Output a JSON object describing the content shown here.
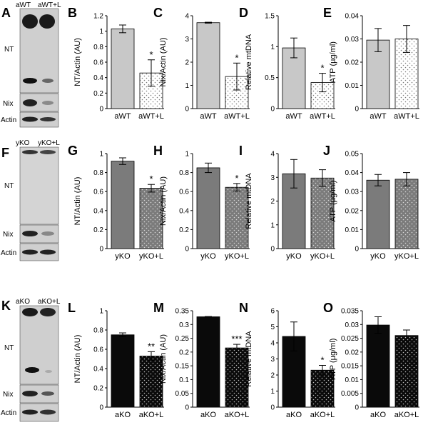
{
  "colors": {
    "aWT_bar": "#c8c8c8",
    "yKO_bar": "#7b7b7b",
    "aKO_bar": "#0a0a0a",
    "dot_light": "#ffffff",
    "axis": "#000000"
  },
  "blots": [
    {
      "letter": "A",
      "lanes": [
        "aWT",
        "aWT+L"
      ],
      "bands": [
        "NT",
        "Nix",
        "Actin"
      ]
    },
    {
      "letter": "F",
      "lanes": [
        "yKO",
        "yKO+L"
      ],
      "bands": [
        "NT",
        "Nix",
        "Actin"
      ]
    },
    {
      "letter": "K",
      "lanes": [
        "aKO",
        "aKO+L"
      ],
      "bands": [
        "NT",
        "Nix",
        "Actin"
      ]
    }
  ],
  "chart_data": [
    {
      "letter": "B",
      "type": "bar",
      "ylabel": "NT/Actin (AU)",
      "ylim": [
        0,
        1.2
      ],
      "ticks": [
        "0",
        "0.2",
        "0.4",
        "0.6",
        "0.8",
        "1",
        "1.2"
      ],
      "categories": [
        "aWT",
        "aWT+L"
      ],
      "values": [
        1.03,
        0.46
      ],
      "errors": [
        0.05,
        0.17
      ],
      "sig": [
        "",
        "*"
      ]
    },
    {
      "letter": "C",
      "type": "bar",
      "ylabel": "Nix/Actin (AU)",
      "ylim": [
        0,
        4
      ],
      "ticks": [
        "0",
        "1",
        "2",
        "3",
        "4"
      ],
      "categories": [
        "aWT",
        "aWT+L"
      ],
      "values": [
        3.7,
        1.38
      ],
      "errors": [
        0.02,
        0.58
      ],
      "sig": [
        "",
        "*"
      ]
    },
    {
      "letter": "D",
      "type": "bar",
      "ylabel": "Relative mtDNA",
      "ylim": [
        0,
        1.5
      ],
      "ticks": [
        "0",
        "0.5",
        "1",
        "1.5"
      ],
      "categories": [
        "aWT",
        "aWT+L"
      ],
      "values": [
        0.98,
        0.42
      ],
      "errors": [
        0.16,
        0.15
      ],
      "sig": [
        "",
        "*"
      ]
    },
    {
      "letter": "E",
      "type": "bar",
      "ylabel": "ATP (µg/ml)",
      "ylim": [
        0,
        0.04
      ],
      "ticks": [
        "0",
        "0.01",
        "0.02",
        "0.03",
        "0.04"
      ],
      "categories": [
        "aWT",
        "aWT+L"
      ],
      "values": [
        0.0295,
        0.03
      ],
      "errors": [
        0.005,
        0.0058
      ],
      "sig": [
        "",
        ""
      ]
    },
    {
      "letter": "G",
      "type": "bar",
      "ylabel": "NT/Actin (AU)",
      "ylim": [
        0,
        1
      ],
      "ticks": [
        "0",
        "0.2",
        "0.4",
        "0.6",
        "0.8",
        "1"
      ],
      "categories": [
        "yKO",
        "yKO+L"
      ],
      "values": [
        0.92,
        0.635
      ],
      "errors": [
        0.035,
        0.04
      ],
      "sig": [
        "",
        "*"
      ]
    },
    {
      "letter": "H",
      "type": "bar",
      "ylabel": "Nix/Actin (AU)",
      "ylim": [
        0,
        1
      ],
      "ticks": [
        "0",
        "0.2",
        "0.4",
        "0.6",
        "0.8",
        "1"
      ],
      "categories": [
        "yKO",
        "yKO+L"
      ],
      "values": [
        0.85,
        0.645
      ],
      "errors": [
        0.05,
        0.04
      ],
      "sig": [
        "",
        "*"
      ]
    },
    {
      "letter": "I",
      "type": "bar",
      "ylabel": "Relative mtDNA",
      "ylim": [
        0,
        4
      ],
      "ticks": [
        "0",
        "1",
        "2",
        "3",
        "4"
      ],
      "categories": [
        "yKO",
        "yKO+L"
      ],
      "values": [
        3.15,
        2.97
      ],
      "errors": [
        0.6,
        0.35
      ],
      "sig": [
        "",
        ""
      ]
    },
    {
      "letter": "J",
      "type": "bar",
      "ylabel": "ATP (µg/ml)",
      "ylim": [
        0,
        0.05
      ],
      "ticks": [
        "0",
        "0.01",
        "0.02",
        "0.03",
        "0.04",
        "0.05"
      ],
      "categories": [
        "yKO",
        "yKO+L"
      ],
      "values": [
        0.036,
        0.0365
      ],
      "errors": [
        0.003,
        0.0035
      ],
      "sig": [
        "",
        ""
      ]
    },
    {
      "letter": "L",
      "type": "bar",
      "ylabel": "NT/Actin (AU)",
      "ylim": [
        0,
        1
      ],
      "ticks": [
        "0",
        "0.2",
        "0.4",
        "0.6",
        "0.8",
        "1"
      ],
      "categories": [
        "aKO",
        "aKO+L"
      ],
      "values": [
        0.75,
        0.53
      ],
      "errors": [
        0.02,
        0.045
      ],
      "sig": [
        "",
        "**"
      ]
    },
    {
      "letter": "M",
      "type": "bar",
      "ylabel": "Nix/Actin (AU)",
      "ylim": [
        0,
        0.35
      ],
      "ticks": [
        "0",
        "0.05",
        "0.1",
        "0.15",
        "0.2",
        "0.25",
        "0.3",
        "0.35"
      ],
      "categories": [
        "aKO",
        "aKO+L"
      ],
      "values": [
        0.328,
        0.215
      ],
      "errors": [
        0.001,
        0.013
      ],
      "sig": [
        "",
        "***"
      ]
    },
    {
      "letter": "N",
      "type": "bar",
      "ylabel": "Relative mtDNA",
      "ylim": [
        0,
        6
      ],
      "ticks": [
        "0",
        "1",
        "2",
        "3",
        "4",
        "5",
        "6"
      ],
      "categories": [
        "aKO",
        "aKO+L"
      ],
      "values": [
        4.4,
        2.3
      ],
      "errors": [
        0.9,
        0.3
      ],
      "sig": [
        "",
        "*"
      ]
    },
    {
      "letter": "O",
      "type": "bar",
      "ylabel": "ATP (µg/ml)",
      "ylim": [
        0,
        0.035
      ],
      "ticks": [
        "0",
        "0.005",
        "0.01",
        "0.015",
        "0.02",
        "0.025",
        "0.03",
        "0.035"
      ],
      "categories": [
        "aKO",
        "aKO+L"
      ],
      "values": [
        0.0298,
        0.026
      ],
      "errors": [
        0.003,
        0.002
      ],
      "sig": [
        "",
        ""
      ]
    }
  ]
}
